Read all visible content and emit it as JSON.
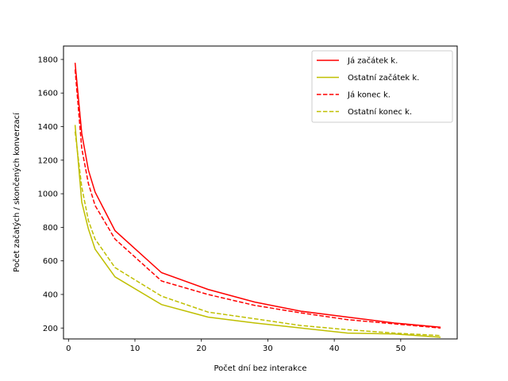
{
  "chart_data": {
    "type": "line",
    "xlabel": "Počet dní bez interakce",
    "ylabel": "Počet začatých / skončených konverzací",
    "xlim": [
      -0.75,
      58.5
    ],
    "ylim": [
      135,
      1880
    ],
    "xticks": [
      0,
      10,
      20,
      30,
      40,
      50
    ],
    "yticks": [
      200,
      400,
      600,
      800,
      1000,
      1200,
      1400,
      1600,
      1800
    ],
    "legend_position": "top-right",
    "grid": false,
    "x": [
      1,
      2,
      3,
      4,
      7,
      14,
      21,
      28,
      35,
      42,
      49,
      56
    ],
    "series": [
      {
        "name": "Já začátek k.",
        "color": "#ff0000",
        "dash": "solid",
        "values": [
          1780,
          1360,
          1140,
          1010,
          780,
          530,
          430,
          355,
          300,
          265,
          230,
          205
        ]
      },
      {
        "name": "Ostatní začátek k.",
        "color": "#bfbf00",
        "dash": "solid",
        "values": [
          1410,
          950,
          790,
          670,
          505,
          340,
          265,
          230,
          200,
          170,
          165,
          145
        ]
      },
      {
        "name": "Já konec k.",
        "color": "#ff0000",
        "dash": "dashed",
        "values": [
          1740,
          1270,
          1060,
          930,
          730,
          480,
          400,
          335,
          290,
          250,
          225,
          200
        ]
      },
      {
        "name": "Ostatní konec k.",
        "color": "#bfbf00",
        "dash": "dashed",
        "values": [
          1370,
          1040,
          840,
          730,
          560,
          390,
          295,
          255,
          215,
          190,
          170,
          155
        ]
      }
    ]
  }
}
